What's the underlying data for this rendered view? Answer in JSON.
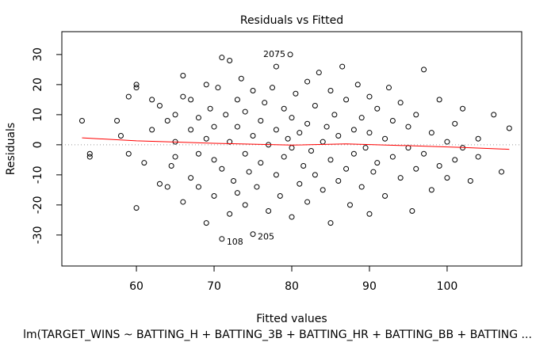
{
  "chart_data": {
    "type": "scatter",
    "title": "Residuals vs Fitted",
    "x_label": "Fitted values",
    "y_label": "Residuals",
    "caption": "lm(TARGET_WINS ~ BATTING_H + BATTING_3B + BATTING_HR + BATTING_BB + BATTING ...",
    "color": "#000000",
    "x": [
      53,
      54,
      54,
      57.5,
      58,
      59,
      59,
      60,
      60,
      60,
      61,
      62,
      62,
      63,
      63,
      64,
      64,
      64.5,
      65,
      65,
      65,
      66,
      66,
      66,
      67,
      67,
      67,
      68,
      68,
      68,
      69,
      69,
      69,
      69.5,
      70,
      70,
      70,
      70.5,
      71,
      71,
      71,
      71.5,
      72,
      72,
      72,
      72.5,
      73,
      73,
      73,
      73.5,
      74,
      74,
      74,
      74.5,
      75,
      75,
      75,
      75.5,
      76,
      76,
      76.5,
      77,
      77,
      77.5,
      78,
      78,
      78,
      78.5,
      79,
      79,
      79.5,
      79.8,
      80,
      80,
      80,
      80.5,
      81,
      81,
      81.5,
      82,
      82,
      82,
      82.5,
      83,
      83,
      83.5,
      84,
      84,
      84.5,
      85,
      85,
      85,
      85.5,
      86,
      86,
      86.5,
      87,
      87,
      87.5,
      88,
      88,
      88.5,
      89,
      89,
      89.5,
      90,
      90,
      90,
      90.5,
      91,
      91,
      92,
      92,
      92.5,
      93,
      93,
      94,
      94,
      95,
      95,
      95.5,
      96,
      96,
      97,
      97,
      98,
      98,
      99,
      99,
      100,
      100,
      101,
      101,
      102,
      102,
      103,
      104,
      104,
      106,
      107,
      108
    ],
    "values": [
      8,
      -3,
      -4,
      8,
      3,
      -3,
      16,
      20,
      19,
      -21,
      -6,
      15,
      5,
      13,
      -13,
      -14,
      8,
      -7,
      -4,
      10,
      1,
      16,
      -19,
      23,
      5,
      -11,
      15,
      -3,
      -14,
      9,
      20,
      -26,
      2,
      12,
      -17,
      6,
      -5,
      19,
      29,
      -31.3,
      -8,
      10,
      28,
      -23,
      1,
      -12,
      15,
      -16,
      6,
      22,
      -3,
      -20,
      11,
      -9,
      18,
      -29.7,
      3,
      -14,
      8,
      -6,
      14,
      -22,
      0,
      19,
      -10,
      5,
      26,
      -17,
      12,
      -4,
      2,
      30,
      -24,
      9,
      -1,
      17,
      -13,
      4,
      -7,
      21,
      -19,
      7,
      -2,
      13,
      -10,
      24,
      1,
      -15,
      6,
      18,
      -5,
      -26,
      10,
      -12,
      3,
      26,
      -8,
      15,
      -20,
      5,
      -3,
      20,
      -14,
      9,
      -1,
      16,
      -23,
      4,
      -9,
      12,
      -6,
      2,
      -17,
      19,
      -4,
      8,
      -11,
      14,
      -1,
      6,
      -22,
      10,
      -8,
      25,
      -3,
      4,
      -15,
      -7,
      15,
      1,
      -11,
      7,
      -5,
      12,
      -1,
      -12,
      2,
      -4,
      10,
      -9,
      5.5
    ],
    "smooth": {
      "color": "#ff0000",
      "x": [
        53,
        60,
        70,
        80,
        87,
        95,
        102,
        108
      ],
      "values": [
        2.3,
        1.3,
        0.5,
        -0.1,
        0.3,
        -0.3,
        -0.9,
        -1.5
      ]
    },
    "annotations": [
      {
        "text": "2075",
        "x": 79.8,
        "y": 30
      },
      {
        "text": "108",
        "x": 71,
        "y": -31.3
      },
      {
        "text": "205",
        "x": 75,
        "y": -29.7
      }
    ],
    "xlim": [
      50.4,
      109.6
    ],
    "ylim": [
      -40.3,
      37.6
    ],
    "xticks": [
      60,
      70,
      80,
      90,
      100
    ],
    "yticks": [
      -30,
      -20,
      -10,
      0,
      10,
      20,
      30
    ]
  }
}
